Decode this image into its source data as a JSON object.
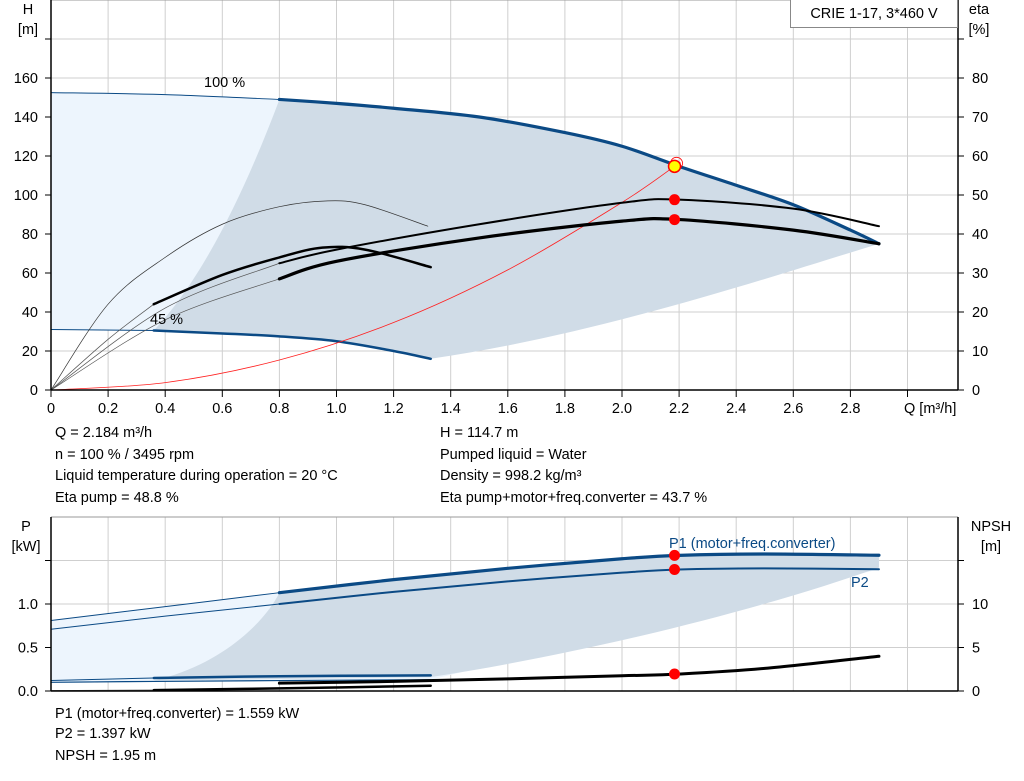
{
  "legend_title": "CRIE 1-17, 3*460 V",
  "info_left": [
    "Q = 2.184 m³/h",
    "n = 100 % / 3495 rpm",
    "Liquid temperature during operation = 20 °C",
    "Eta pump = 48.8 %"
  ],
  "info_right": [
    "H = 114.7 m",
    "Pumped liquid = Water",
    "Density = 998.2 kg/m³",
    "Eta pump+motor+freq.converter = 43.7 %"
  ],
  "info_bottom": [
    "P1 (motor+freq.converter) = 1.559 kW",
    "P2 = 1.397 kW",
    "NPSH = 1.95 m"
  ],
  "colors": {
    "head": "#0b4a85",
    "eta": "#000000",
    "system": "#ff2020",
    "area_dark": "#d0dce7",
    "area_light": "#edf5fd",
    "grid": "#cfcfcf",
    "point": "#ff0000",
    "duty": "#ffff00"
  },
  "chart_data": [
    {
      "type": "line",
      "xlabel": "Q [m³/h]",
      "ylabel_left": [
        "H",
        "[m]"
      ],
      "ylabel_right": [
        "eta",
        "[%]"
      ],
      "xlim": [
        0,
        3.2
      ],
      "ylim_left": [
        0,
        200
      ],
      "ylim_right": [
        0,
        100
      ],
      "xticks": [
        "0",
        "0.2",
        "0.4",
        "0.6",
        "0.8",
        "1.0",
        "1.2",
        "1.4",
        "1.6",
        "1.8",
        "2.0",
        "2.2",
        "2.4",
        "2.6",
        "2.8"
      ],
      "yticks_left": [
        "0",
        "20",
        "40",
        "60",
        "80",
        "100",
        "120",
        "140",
        "160"
      ],
      "yticks_right": [
        "0",
        "10",
        "20",
        "30",
        "40",
        "50",
        "60",
        "70",
        "80"
      ],
      "grid": true,
      "annotations": [
        "100 %",
        "45 %"
      ],
      "series": [
        {
          "axis": "H",
          "speed": "100 %",
          "x": [
            0,
            0.4,
            0.8,
            1.0,
            1.2,
            1.5,
            1.8,
            2.0,
            2.2,
            2.4,
            2.6,
            2.8,
            2.9
          ],
          "y": [
            152.5,
            151.5,
            149,
            147,
            144.5,
            140,
            132,
            125,
            114.7,
            105,
            95,
            82,
            75
          ]
        },
        {
          "axis": "H",
          "speed": "45 %",
          "x": [
            0,
            0.36,
            0.6,
            0.8,
            1.0,
            1.2,
            1.33
          ],
          "y": [
            31,
            30.5,
            29,
            27.5,
            25,
            20,
            16
          ]
        },
        {
          "axis": "H",
          "name": "system",
          "x": [
            0,
            0.4,
            0.8,
            1.2,
            1.6,
            2.0,
            2.184,
            2.2
          ],
          "y": [
            0,
            3.8,
            15.4,
            34.6,
            61.6,
            96.2,
            114.7,
            116.4
          ]
        },
        {
          "axis": "eta",
          "curve": "pump 100 %",
          "x": [
            0,
            0.4,
            0.8,
            1.0,
            1.5,
            2.0,
            2.2,
            2.6,
            2.9
          ],
          "y": [
            0,
            21,
            32.5,
            36,
            42.5,
            48,
            48.8,
            46.5,
            42
          ]
        },
        {
          "axis": "eta",
          "curve": "pump+motor+freq.converter 100 %",
          "x": [
            0,
            0.4,
            0.8,
            1.0,
            1.5,
            2.0,
            2.2,
            2.6,
            2.9
          ],
          "y": [
            0,
            18,
            28.5,
            33,
            39,
            43.3,
            43.7,
            41,
            37.5
          ]
        },
        {
          "axis": "eta",
          "curve": "pump 45 %",
          "x": [
            0,
            0.2,
            0.4,
            0.6,
            0.8,
            0.97,
            1.1,
            1.32
          ],
          "y": [
            0,
            22,
            34,
            42.5,
            47,
            48.5,
            47.5,
            42
          ]
        },
        {
          "axis": "eta",
          "curve": "pump+motor+freq.converter 45 %",
          "x": [
            0,
            0.2,
            0.36,
            0.6,
            0.8,
            0.95,
            1.1,
            1.33
          ],
          "y": [
            0,
            13,
            22,
            29.5,
            34,
            36.5,
            36,
            31.5
          ]
        }
      ],
      "duty_point": {
        "Q": 2.184,
        "H": 114.7,
        "eta_pump": 48.8,
        "eta_total": 43.7
      }
    },
    {
      "type": "line",
      "ylabel_left": [
        "P",
        "[kW]"
      ],
      "ylabel_right": [
        "NPSH",
        "[m]"
      ],
      "xlim": [
        0,
        3.2
      ],
      "ylim_left": [
        0,
        2.0
      ],
      "ylim_right": [
        0,
        20
      ],
      "yticks_left": [
        "0.0",
        "0.5",
        "1.0"
      ],
      "yticks_right": [
        "0",
        "5",
        "10"
      ],
      "grid": true,
      "series": [
        {
          "name": "P1 (motor+freq.converter)",
          "axis": "P",
          "x": [
            0,
            0.4,
            0.8,
            1.2,
            1.6,
            2.0,
            2.2,
            2.5,
            2.9
          ],
          "y": [
            0.81,
            0.97,
            1.13,
            1.28,
            1.41,
            1.52,
            1.559,
            1.575,
            1.56
          ]
        },
        {
          "name": "P2",
          "axis": "P",
          "x": [
            0,
            0.4,
            0.8,
            1.2,
            1.6,
            2.0,
            2.2,
            2.5,
            2.9
          ],
          "y": [
            0.71,
            0.86,
            1.0,
            1.14,
            1.26,
            1.36,
            1.397,
            1.41,
            1.4
          ]
        },
        {
          "axis": "P",
          "curve": "P1 45 %",
          "x": [
            0,
            0.36,
            0.8,
            1.33
          ],
          "y": [
            0.12,
            0.15,
            0.17,
            0.18
          ]
        },
        {
          "axis": "P",
          "curve": "P2 45 %",
          "x": [
            0,
            0.36,
            0.8,
            1.33
          ],
          "y": [
            0.1,
            0.11,
            0.12,
            0.13
          ]
        },
        {
          "axis": "NPSH",
          "curve": "NPSH 100 %",
          "x": [
            0.8,
            1.2,
            1.6,
            2.0,
            2.2,
            2.5,
            2.9
          ],
          "y": [
            0.9,
            1.1,
            1.4,
            1.75,
            1.95,
            2.6,
            4.0
          ]
        },
        {
          "axis": "NPSH",
          "curve": "NPSH 45 %",
          "x": [
            0,
            0.36,
            0.8,
            1.33
          ],
          "y": [
            0.05,
            0.1,
            0.3,
            0.6
          ]
        }
      ],
      "duty_point": {
        "Q": 2.184,
        "P1": 1.559,
        "P2": 1.397,
        "NPSH": 1.95
      }
    }
  ]
}
